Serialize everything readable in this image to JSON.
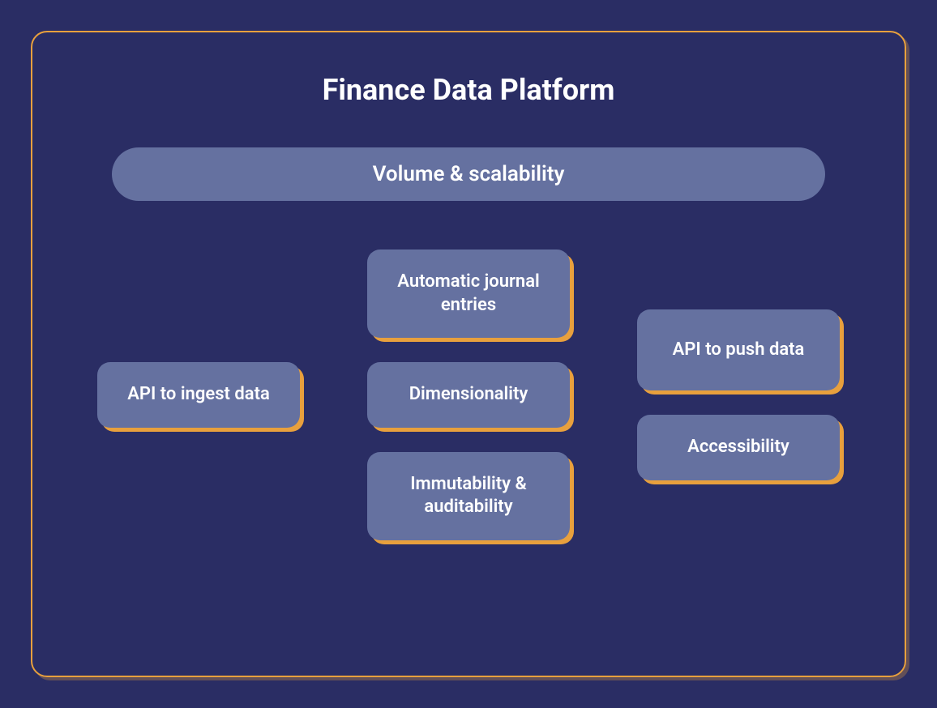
{
  "diagram": {
    "title": "Finance Data Platform",
    "header_pill": "Volume & scalability",
    "background_color": "#2a2d64",
    "border_color": "#e8a03d",
    "box_bg_color": "#6571a0",
    "box_shadow_color": "#e8a03d",
    "text_color": "#ffffff",
    "title_fontsize": 36,
    "pill_fontsize": 26,
    "box_fontsize": 22,
    "border_radius": 16,
    "columns": {
      "left": [
        {
          "label": "API to ingest data"
        }
      ],
      "center": [
        {
          "label": "Automatic journal entries"
        },
        {
          "label": "Dimensionality"
        },
        {
          "label": "Immutability & auditability"
        }
      ],
      "right": [
        {
          "label": "API to push data"
        },
        {
          "label": "Accessibility"
        }
      ]
    }
  }
}
